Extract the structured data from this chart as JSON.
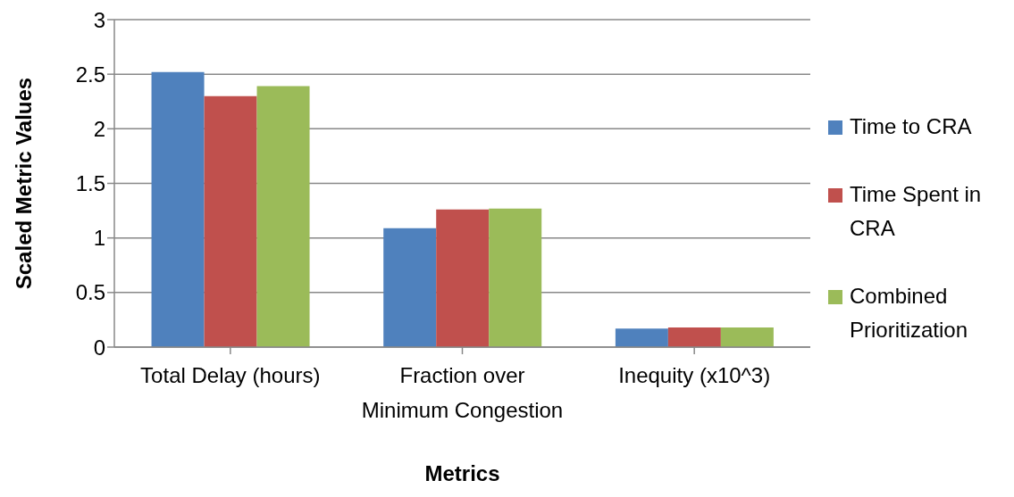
{
  "chart_data": {
    "type": "bar",
    "xlabel": "Metrics",
    "ylabel": "Scaled Metric Values",
    "categories": [
      "Total Delay (hours)",
      "Fraction over Minimum Congestion",
      "Inequity (x10^3)"
    ],
    "series": [
      {
        "name": "Time to CRA",
        "color": "#4f81bd",
        "values": [
          2.52,
          1.09,
          0.17
        ]
      },
      {
        "name": "Time Spent in CRA",
        "color": "#c0504d",
        "values": [
          2.3,
          1.26,
          0.18
        ]
      },
      {
        "name": "Combined Prioritization",
        "color": "#9bbb59",
        "values": [
          2.39,
          1.27,
          0.18
        ]
      }
    ],
    "ylim": [
      0,
      3
    ],
    "yticks": [
      0,
      0.5,
      1,
      1.5,
      2,
      2.5,
      3
    ],
    "grid": "y",
    "legend": "right"
  }
}
